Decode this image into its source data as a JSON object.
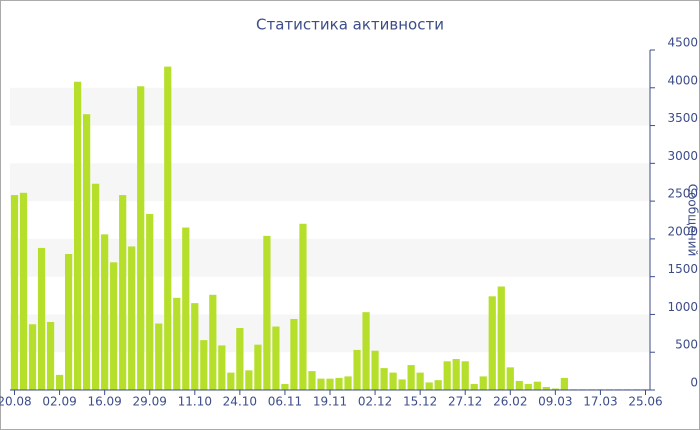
{
  "chart_data": {
    "type": "bar",
    "title": "Статистика активности",
    "y_label": "Сообщений",
    "categories": [
      "20.08",
      null,
      null,
      null,
      null,
      "02.09",
      null,
      null,
      null,
      null,
      "16.09",
      null,
      null,
      null,
      null,
      "29.09",
      null,
      null,
      null,
      null,
      "11.10",
      null,
      null,
      null,
      null,
      "24.10",
      null,
      null,
      null,
      null,
      "06.11",
      null,
      null,
      null,
      null,
      "19.11",
      null,
      null,
      null,
      null,
      "02.12",
      null,
      null,
      null,
      null,
      "15.12",
      null,
      null,
      null,
      null,
      "27.12",
      null,
      null,
      null,
      null,
      "26.02",
      null,
      null,
      null,
      null,
      "09.03",
      null,
      null,
      null,
      null,
      "17.03",
      null,
      null,
      null,
      null,
      "25.06"
    ],
    "values": [
      2580,
      2610,
      870,
      1880,
      900,
      200,
      1800,
      4080,
      3650,
      2730,
      2060,
      1690,
      2580,
      1900,
      4020,
      2330,
      880,
      4280,
      1220,
      2150,
      1150,
      660,
      1260,
      590,
      230,
      820,
      260,
      600,
      2040,
      840,
      80,
      940,
      2200,
      250,
      150,
      150,
      160,
      180,
      530,
      1030,
      520,
      290,
      230,
      140,
      330,
      230,
      100,
      130,
      380,
      410,
      380,
      80,
      180,
      1240,
      1370,
      300,
      120,
      80,
      110,
      40,
      20,
      160,
      10,
      10,
      10,
      10,
      10,
      10,
      10,
      10,
      10
    ],
    "color": "#b5df2b",
    "ylim": [
      0,
      4500
    ],
    "yticks": [
      0,
      500,
      1000,
      1500,
      2000,
      2500,
      3000,
      3500,
      4000,
      4500
    ],
    "grid": true,
    "y_axis_side": "right"
  }
}
